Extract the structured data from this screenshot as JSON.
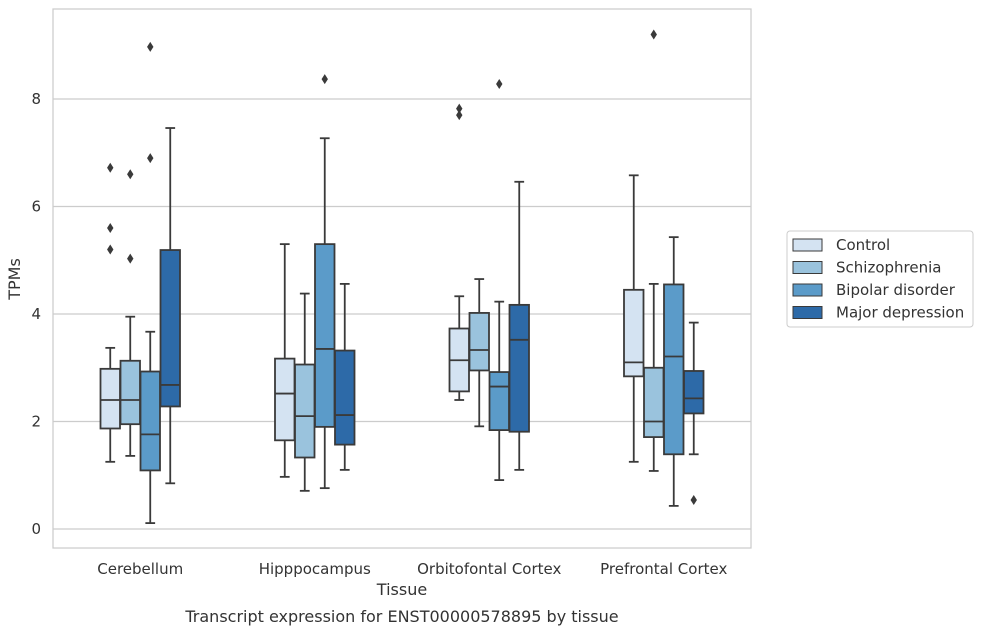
{
  "chart_data": {
    "type": "box",
    "caption": "Transcript expression for ENST00000578895 by tissue",
    "xlabel": "Tissue",
    "ylabel": "TPMs",
    "ylim": [
      -0.3,
      9.6
    ],
    "yticks": [
      0,
      2,
      4,
      6,
      8
    ],
    "grid": "horizontal",
    "legend_position": "right",
    "categories": [
      "Cerebellum",
      "Hipppocampus",
      "Orbitofontal Cortex",
      "Prefrontal Cortex"
    ],
    "series": [
      {
        "name": "Control",
        "color": "#d4e3f2",
        "boxes": [
          {
            "whislo": 1.25,
            "q1": 1.87,
            "med": 2.4,
            "q3": 2.98,
            "whishi": 3.37,
            "fliers": [
              5.2,
              5.6,
              6.72
            ]
          },
          {
            "whislo": 0.97,
            "q1": 1.65,
            "med": 2.52,
            "q3": 3.17,
            "whishi": 5.3,
            "fliers": []
          },
          {
            "whislo": 2.4,
            "q1": 2.56,
            "med": 3.14,
            "q3": 3.73,
            "whishi": 4.33,
            "fliers": [
              7.7,
              7.82
            ]
          },
          {
            "whislo": 1.25,
            "q1": 2.84,
            "med": 3.1,
            "q3": 4.45,
            "whishi": 6.58,
            "fliers": []
          }
        ]
      },
      {
        "name": "Schizophrenia",
        "color": "#9ac3dd",
        "boxes": [
          {
            "whislo": 1.36,
            "q1": 1.95,
            "med": 2.4,
            "q3": 3.13,
            "whishi": 3.95,
            "fliers": [
              5.03,
              6.6
            ]
          },
          {
            "whislo": 0.71,
            "q1": 1.33,
            "med": 2.1,
            "q3": 3.06,
            "whishi": 4.38,
            "fliers": []
          },
          {
            "whislo": 1.91,
            "q1": 2.95,
            "med": 3.33,
            "q3": 4.02,
            "whishi": 4.65,
            "fliers": []
          },
          {
            "whislo": 1.08,
            "q1": 1.71,
            "med": 2.0,
            "q3": 3.0,
            "whishi": 4.56,
            "fliers": [
              9.2
            ]
          }
        ]
      },
      {
        "name": "Bipolar disorder",
        "color": "#5b9bc9",
        "boxes": [
          {
            "whislo": 0.11,
            "q1": 1.09,
            "med": 1.76,
            "q3": 2.93,
            "whishi": 3.67,
            "fliers": [
              6.9,
              8.97
            ]
          },
          {
            "whislo": 0.76,
            "q1": 1.9,
            "med": 3.35,
            "q3": 5.3,
            "whishi": 7.27,
            "fliers": [
              8.37
            ]
          },
          {
            "whislo": 0.91,
            "q1": 1.84,
            "med": 2.65,
            "q3": 2.92,
            "whishi": 4.23,
            "fliers": [
              8.28
            ]
          },
          {
            "whislo": 0.43,
            "q1": 1.39,
            "med": 3.21,
            "q3": 4.55,
            "whishi": 5.43,
            "fliers": []
          }
        ]
      },
      {
        "name": "Major depression",
        "color": "#2d6aa8",
        "boxes": [
          {
            "whislo": 0.85,
            "q1": 2.28,
            "med": 2.68,
            "q3": 5.19,
            "whishi": 7.46,
            "fliers": []
          },
          {
            "whislo": 1.1,
            "q1": 1.57,
            "med": 2.12,
            "q3": 3.32,
            "whishi": 4.56,
            "fliers": []
          },
          {
            "whislo": 1.1,
            "q1": 1.81,
            "med": 3.52,
            "q3": 4.17,
            "whishi": 6.46,
            "fliers": []
          },
          {
            "whislo": 1.39,
            "q1": 2.15,
            "med": 2.43,
            "q3": 2.94,
            "whishi": 3.84,
            "fliers": [
              0.54
            ]
          }
        ]
      }
    ]
  }
}
